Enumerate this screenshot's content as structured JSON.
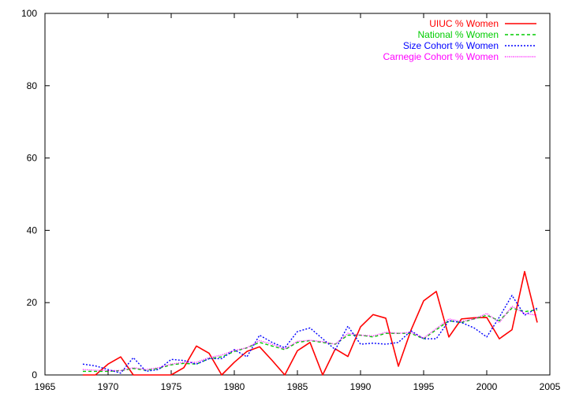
{
  "chart_data": {
    "type": "line",
    "title": "",
    "xlabel": "",
    "ylabel": "",
    "xlim": [
      1965,
      2005
    ],
    "ylim": [
      0,
      100
    ],
    "xticks": [
      1965,
      1970,
      1975,
      1980,
      1985,
      1990,
      1995,
      2000,
      2005
    ],
    "yticks": [
      0,
      20,
      40,
      60,
      80,
      100
    ],
    "grid": false,
    "legend_position": "top-right",
    "x": [
      1968,
      1969,
      1970,
      1971,
      1972,
      1973,
      1974,
      1975,
      1976,
      1977,
      1978,
      1979,
      1980,
      1981,
      1982,
      1983,
      1984,
      1985,
      1986,
      1987,
      1988,
      1989,
      1990,
      1991,
      1992,
      1993,
      1994,
      1995,
      1996,
      1997,
      1998,
      1999,
      2000,
      2001,
      2002,
      2003,
      2004
    ],
    "series": [
      {
        "name": "UIUC % Women",
        "color": "#ff0000",
        "dash": "solid",
        "values": [
          0,
          0,
          3,
          5,
          0,
          0,
          0,
          0,
          2,
          8,
          6,
          0,
          3.5,
          6.5,
          7.8,
          4,
          0,
          6.7,
          9,
          0,
          7.2,
          5.1,
          13.3,
          16.7,
          15.7,
          2.4,
          12.4,
          20.5,
          23.1,
          10.5,
          15.5,
          15.8,
          15.9,
          10,
          12.5,
          28.6,
          14.5
        ]
      },
      {
        "name": "National % Women",
        "color": "#00cc00",
        "dash": "dashed",
        "values": [
          1,
          1,
          1,
          1.2,
          1.8,
          1.3,
          1.8,
          2.8,
          3.2,
          3,
          4.5,
          5,
          6.5,
          7.5,
          9,
          8,
          7,
          9,
          9.5,
          9,
          8.5,
          11,
          11,
          10.5,
          11.5,
          11.5,
          11.5,
          10,
          12.5,
          15,
          14.5,
          15.5,
          16.5,
          15,
          18.5,
          17.5,
          18
        ]
      },
      {
        "name": "Size Cohort % Women",
        "color": "#0000ff",
        "dash": "dotted",
        "values": [
          3,
          2.5,
          1.5,
          0.5,
          4.8,
          1,
          1.5,
          4.3,
          4,
          3,
          4.5,
          4.5,
          7,
          5,
          11,
          9,
          7.5,
          12,
          13,
          10,
          7,
          13.5,
          8.5,
          8.8,
          8.5,
          9,
          12.2,
          10,
          10,
          15,
          14.5,
          13,
          10.5,
          16,
          22,
          16.5,
          18.5
        ]
      },
      {
        "name": "Carnegie Cohort % Women",
        "color": "#ff00ff",
        "dash": "dotted-fine",
        "values": [
          1.5,
          1.3,
          1.2,
          1.2,
          2,
          1.5,
          2,
          3,
          3.5,
          3.5,
          4.8,
          5.5,
          6.8,
          7.5,
          9.5,
          8.5,
          7.2,
          9.3,
          9.6,
          9.2,
          8.5,
          11.5,
          11,
          10.8,
          11.8,
          11.5,
          11.8,
          10.2,
          12.8,
          15.5,
          14.8,
          15.5,
          17,
          14.5,
          19,
          17,
          16.5
        ]
      }
    ]
  }
}
